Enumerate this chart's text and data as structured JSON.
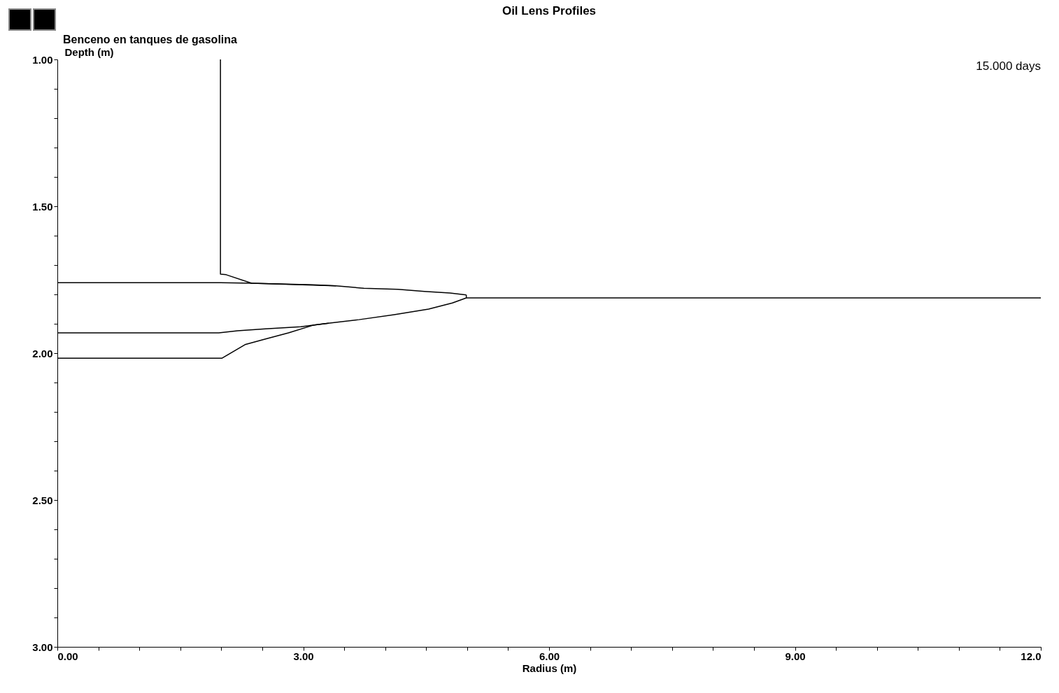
{
  "chart_data": {
    "type": "line",
    "title": "Oil Lens Profiles",
    "subtitle": "Benceno en tanques de gasolina",
    "xlabel": "Radius (m)",
    "ylabel": "Depth (m)",
    "annotations": [
      "15.000 days"
    ],
    "xlim": [
      0,
      12
    ],
    "ylim": [
      3,
      1
    ],
    "xticks": [
      {
        "value": 0,
        "label": "0.00"
      },
      {
        "value": 0.5,
        "label": null
      },
      {
        "value": 1,
        "label": null
      },
      {
        "value": 1.5,
        "label": null
      },
      {
        "value": 2,
        "label": null
      },
      {
        "value": 2.5,
        "label": null
      },
      {
        "value": 3,
        "label": "3.00"
      },
      {
        "value": 3.5,
        "label": null
      },
      {
        "value": 4,
        "label": null
      },
      {
        "value": 4.5,
        "label": null
      },
      {
        "value": 5,
        "label": null
      },
      {
        "value": 5.5,
        "label": null
      },
      {
        "value": 6,
        "label": "6.00"
      },
      {
        "value": 6.5,
        "label": null
      },
      {
        "value": 7,
        "label": null
      },
      {
        "value": 7.5,
        "label": null
      },
      {
        "value": 8,
        "label": null
      },
      {
        "value": 8.5,
        "label": null
      },
      {
        "value": 9,
        "label": "9.00"
      },
      {
        "value": 9.5,
        "label": null
      },
      {
        "value": 10,
        "label": null
      },
      {
        "value": 10.5,
        "label": null
      },
      {
        "value": 11,
        "label": null
      },
      {
        "value": 11.5,
        "label": null
      },
      {
        "value": 12,
        "label": "12.0"
      }
    ],
    "yticks": [
      {
        "value": 1,
        "label": "1.00"
      },
      {
        "value": 1.1,
        "label": null
      },
      {
        "value": 1.2,
        "label": null
      },
      {
        "value": 1.3,
        "label": null
      },
      {
        "value": 1.4,
        "label": null
      },
      {
        "value": 1.5,
        "label": "1.50"
      },
      {
        "value": 1.6,
        "label": null
      },
      {
        "value": 1.7,
        "label": null
      },
      {
        "value": 1.8,
        "label": null
      },
      {
        "value": 1.9,
        "label": null
      },
      {
        "value": 2,
        "label": "2.00"
      },
      {
        "value": 2.1,
        "label": null
      },
      {
        "value": 2.2,
        "label": null
      },
      {
        "value": 2.3,
        "label": null
      },
      {
        "value": 2.4,
        "label": null
      },
      {
        "value": 2.5,
        "label": "2.50"
      },
      {
        "value": 2.6,
        "label": null
      },
      {
        "value": 2.7,
        "label": null
      },
      {
        "value": 2.8,
        "label": null
      },
      {
        "value": 2.9,
        "label": null
      },
      {
        "value": 3,
        "label": "3.00"
      }
    ],
    "grid": false,
    "legend": false,
    "marker": "none",
    "line_style": "solid",
    "series": [
      {
        "color": "#000000",
        "x": [
          1.99,
          1.99,
          2.06,
          2.37,
          3.12,
          3.4,
          3.74,
          4.16,
          4.48,
          4.79,
          4.99
        ],
        "values": [
          1.0,
          1.731,
          1.733,
          1.762,
          1.767,
          1.771,
          1.779,
          1.783,
          1.79,
          1.795,
          1.802
        ]
      },
      {
        "color": "#000000",
        "x": [
          0,
          1.99,
          2.37,
          3.4
        ],
        "values": [
          1.76,
          1.76,
          1.762,
          1.771
        ]
      },
      {
        "color": "#000000",
        "x": [
          4.99,
          4.99,
          4.82,
          4.53,
          4.11,
          3.68,
          3.25,
          2.97,
          2.54,
          2.2,
          1.97,
          0
        ],
        "values": [
          1.802,
          1.812,
          1.829,
          1.85,
          1.869,
          1.886,
          1.9,
          1.91,
          1.917,
          1.924,
          1.931,
          1.931
        ]
      },
      {
        "color": "#000000",
        "x": [
          4.99,
          12
        ],
        "values": [
          1.812,
          1.812
        ]
      },
      {
        "color": "#000000",
        "x": [
          0,
          2.01,
          2.29,
          2.54,
          2.82,
          3.12,
          3.31
        ],
        "values": [
          2.017,
          2.017,
          1.971,
          1.952,
          1.931,
          1.905,
          1.898
        ]
      }
    ]
  }
}
